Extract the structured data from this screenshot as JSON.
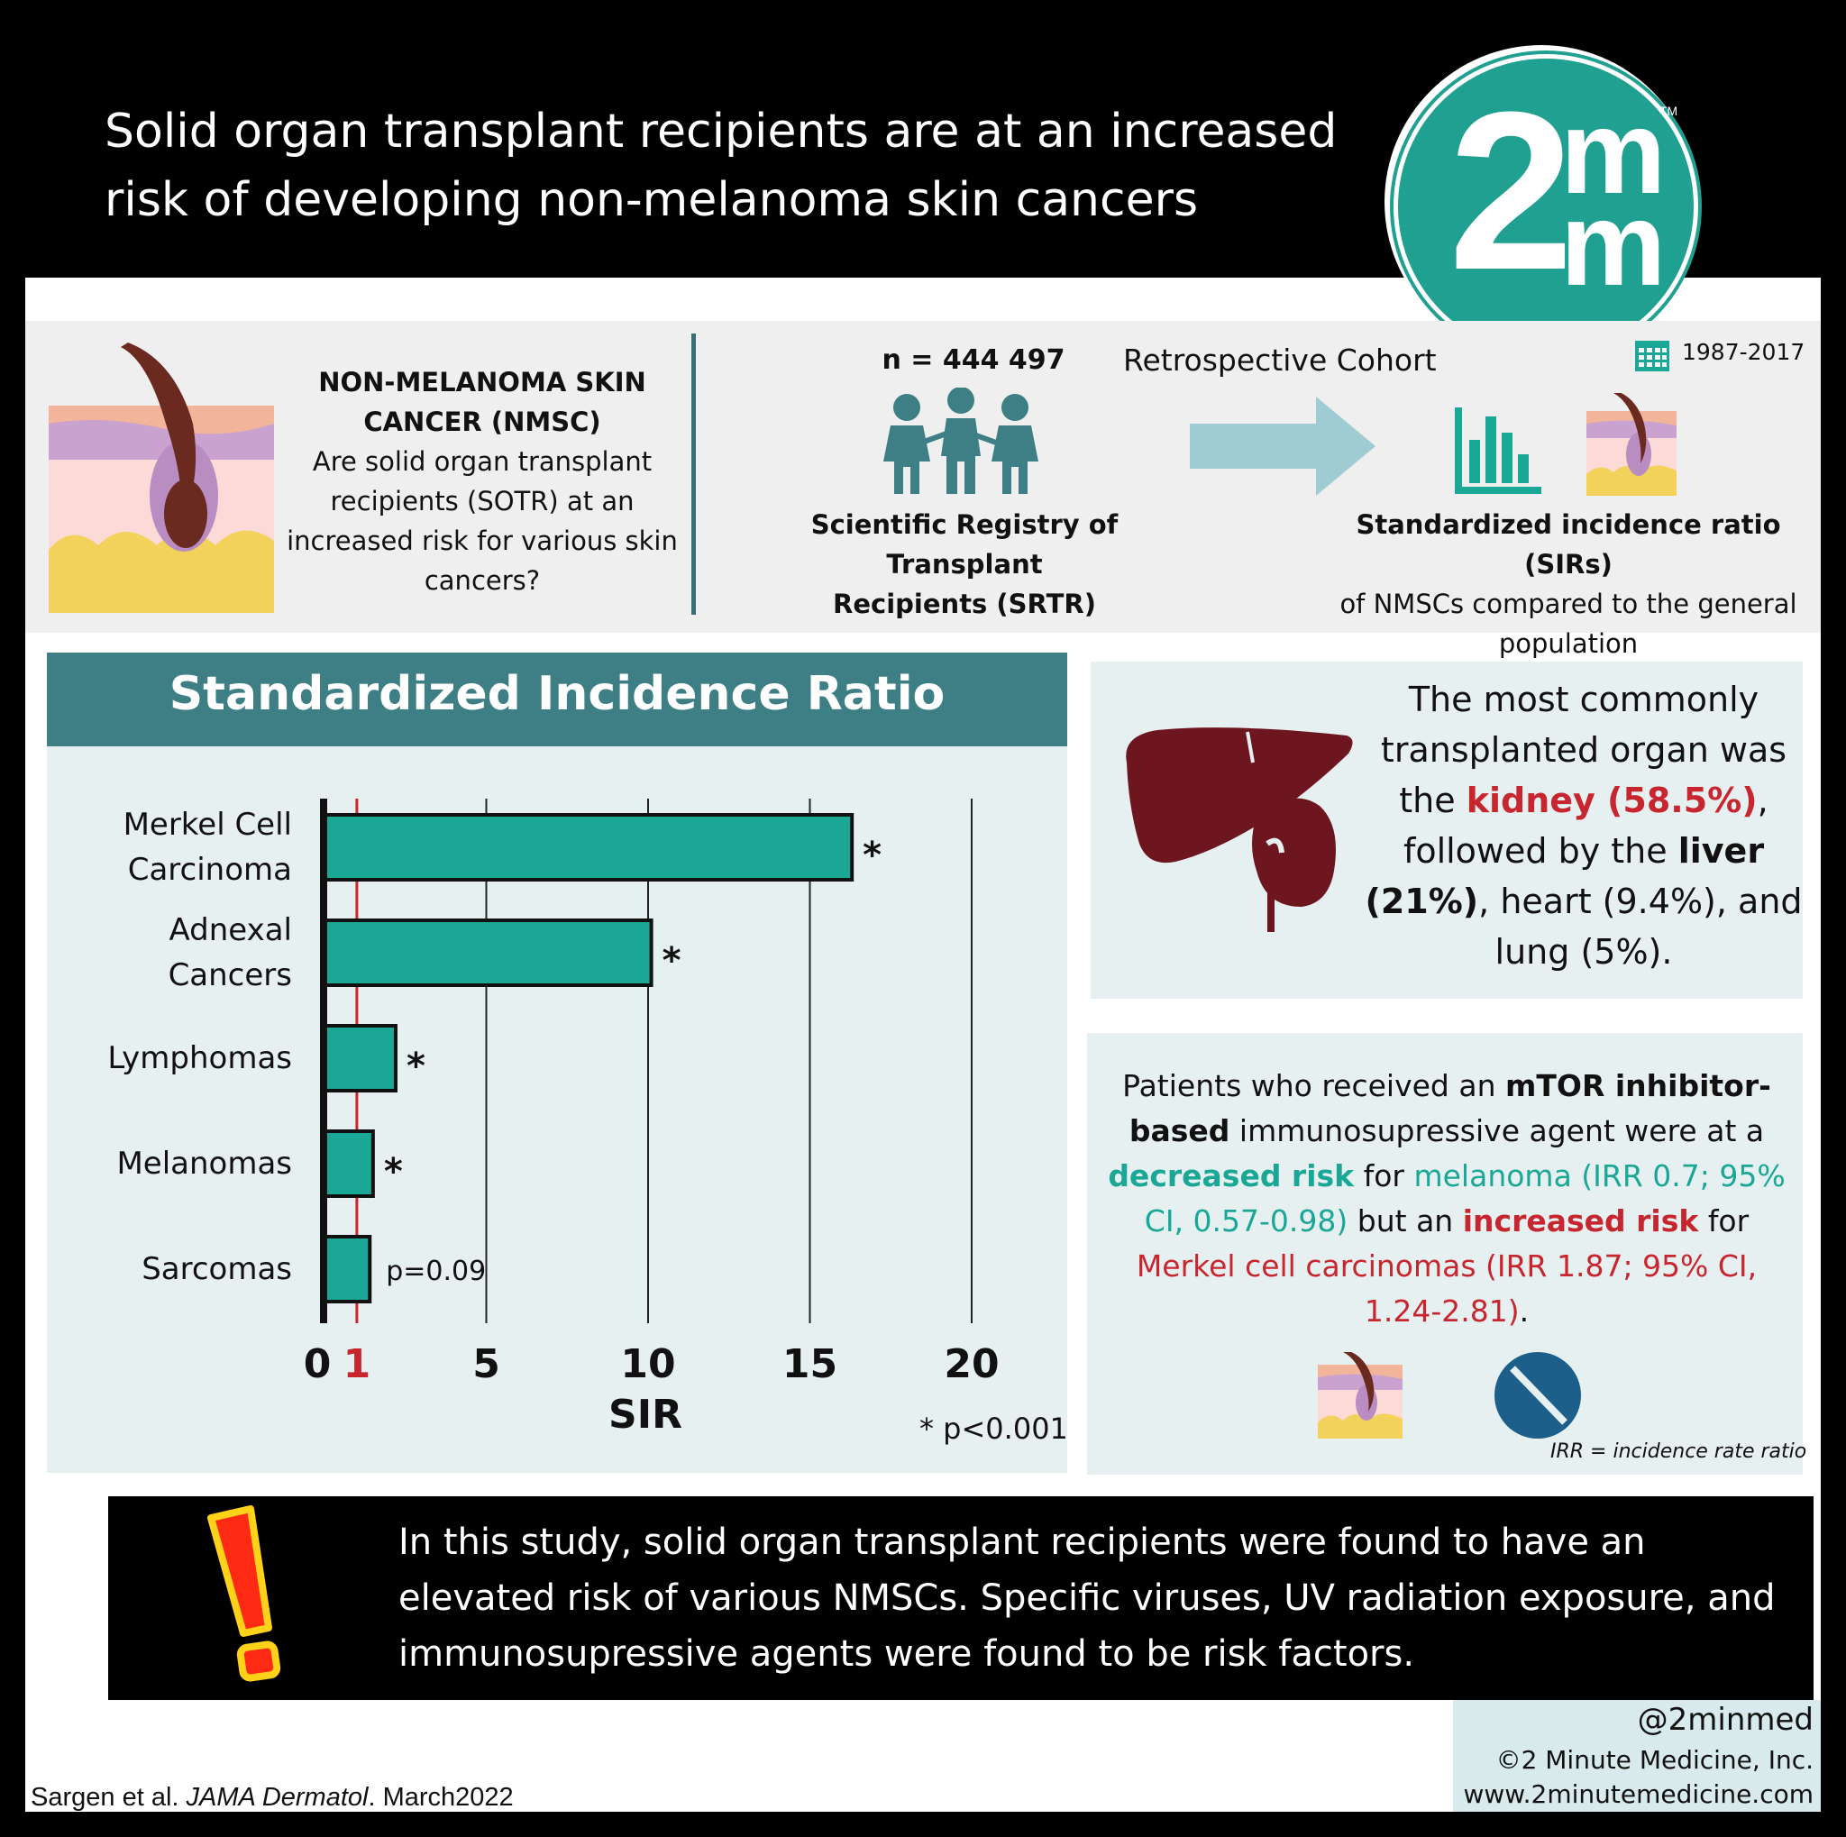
{
  "header": {
    "title_line1": "Solid organ transplant recipients are at an increased",
    "title_line2": "risk of developing non-melanoma skin cancers",
    "logo_text_2": "2",
    "logo_text_m": "m",
    "logo_tm": "TM"
  },
  "study": {
    "nmsc_title_line1": "NON-MELANOMA SKIN",
    "nmsc_title_line2": "CANCER (NMSC)",
    "question": "Are solid organ transplant recipients (SOTR) at an increased risk for various skin cancers?",
    "n": "n = 444 497",
    "registry_line1": "Scientific Registry of Transplant",
    "registry_line2": "Recipients (SRTR)",
    "design": "Retrospective Cohort",
    "years": "1987-2017",
    "outcome_bold": "Standardized incidence ratio (SIRs)",
    "outcome_rest": "of NMSCs compared to the general population"
  },
  "colors": {
    "teal_bar": "#1aa796",
    "chart_header": "#3e7f86",
    "reference_line": "#c8262f",
    "organ": "#6e1620",
    "panel_bg": "#e6f0f1"
  },
  "chart_data": {
    "type": "bar",
    "orientation": "horizontal",
    "title": "Standardized Incidence Ratio",
    "xlabel": "SIR",
    "xlim": [
      0,
      20
    ],
    "ticks": [
      0,
      1,
      5,
      10,
      15,
      20
    ],
    "reference_value": 1,
    "categories": [
      "Merkel Cell Carcinoma",
      "Adnexal Cancers",
      "Lymphomas",
      "Melanomas",
      "Sarcomas"
    ],
    "category_lines": [
      [
        "Merkel Cell",
        "Carcinoma"
      ],
      [
        "Adnexal",
        "Cancers"
      ],
      [
        "Lymphomas"
      ],
      [
        "Melanomas"
      ],
      [
        "Sarcomas"
      ]
    ],
    "values": [
      16.3,
      10.1,
      2.2,
      1.5,
      1.4
    ],
    "annotations": [
      "*",
      "*",
      "*",
      "*",
      "p=0.09"
    ],
    "footnote": "* p<0.001",
    "grid": true
  },
  "organs": {
    "text_a": "The most commonly transplanted organ was the ",
    "kidney": "kidney (58.5%)",
    "text_b": ", followed by the ",
    "liver": "liver (21%)",
    "text_c": ", heart (9.4%), and lung (5%)."
  },
  "mtor": {
    "t1": "Patients who received an ",
    "t2": "mTOR inhibitor-based",
    "t3": " immunosupressive agent were at a ",
    "t4": "decreased risk",
    "t5": " for ",
    "t6": "melanoma (IRR 0.7; 95% CI, 0.57-0.98)",
    "t7": " but an ",
    "t8": "increased risk",
    "t9": " for ",
    "t10": "Merkel cell carcinomas (IRR 1.87; 95% CI, 1.24-2.81)",
    "t11": ".",
    "irr_note": "IRR = incidence rate ratio"
  },
  "conclusion": {
    "text": "In this study, solid organ transplant recipients were found to have an elevated risk of various NMSCs. Specific viruses, UV radiation exposure, and immunosupressive agents were found to be risk factors."
  },
  "footer": {
    "handle": "@2minmed",
    "copyright": "©2 Minute Medicine, Inc.",
    "url": "www.2minutemedicine.com",
    "citation_authors": "Sargen et al. ",
    "citation_journal": "JAMA Dermatol",
    "citation_date": ". March2022"
  }
}
